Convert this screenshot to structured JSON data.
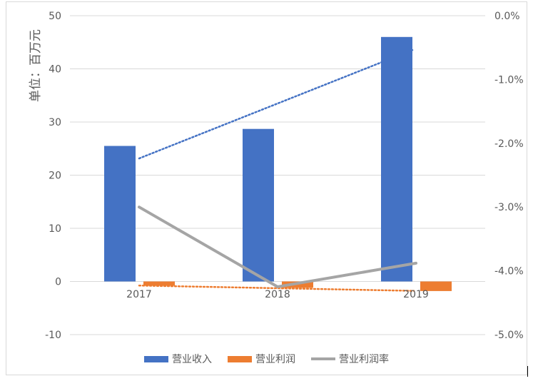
{
  "chart_data": {
    "type": "bar",
    "categories": [
      "2017",
      "2018",
      "2019"
    ],
    "ylabel": "单位：百万元",
    "ylim": [
      -10,
      50
    ],
    "yticks": [
      "50",
      "40",
      "30",
      "20",
      "10",
      "0",
      "-10"
    ],
    "y2lim": [
      -5.0,
      0.0
    ],
    "y2ticks": [
      "0.0%",
      "-1.0%",
      "-2.0%",
      "-3.0%",
      "-4.0%",
      "-5.0%"
    ],
    "grid": true,
    "legend_position": "bottom",
    "series": [
      {
        "name": "营业收入",
        "type": "bar",
        "axis": "left",
        "color": "#4472c4",
        "values": [
          25.5,
          28.7,
          46.0
        ],
        "trendline": "linear-dotted"
      },
      {
        "name": "营业利润",
        "type": "bar",
        "axis": "left",
        "color": "#ed7d31",
        "values": [
          -0.8,
          -1.2,
          -1.8
        ],
        "trendline": "linear-dotted"
      },
      {
        "name": "营业利润率",
        "type": "line",
        "axis": "right",
        "color": "#a5a5a5",
        "values": [
          -3.0,
          -4.25,
          -3.88
        ]
      }
    ]
  }
}
